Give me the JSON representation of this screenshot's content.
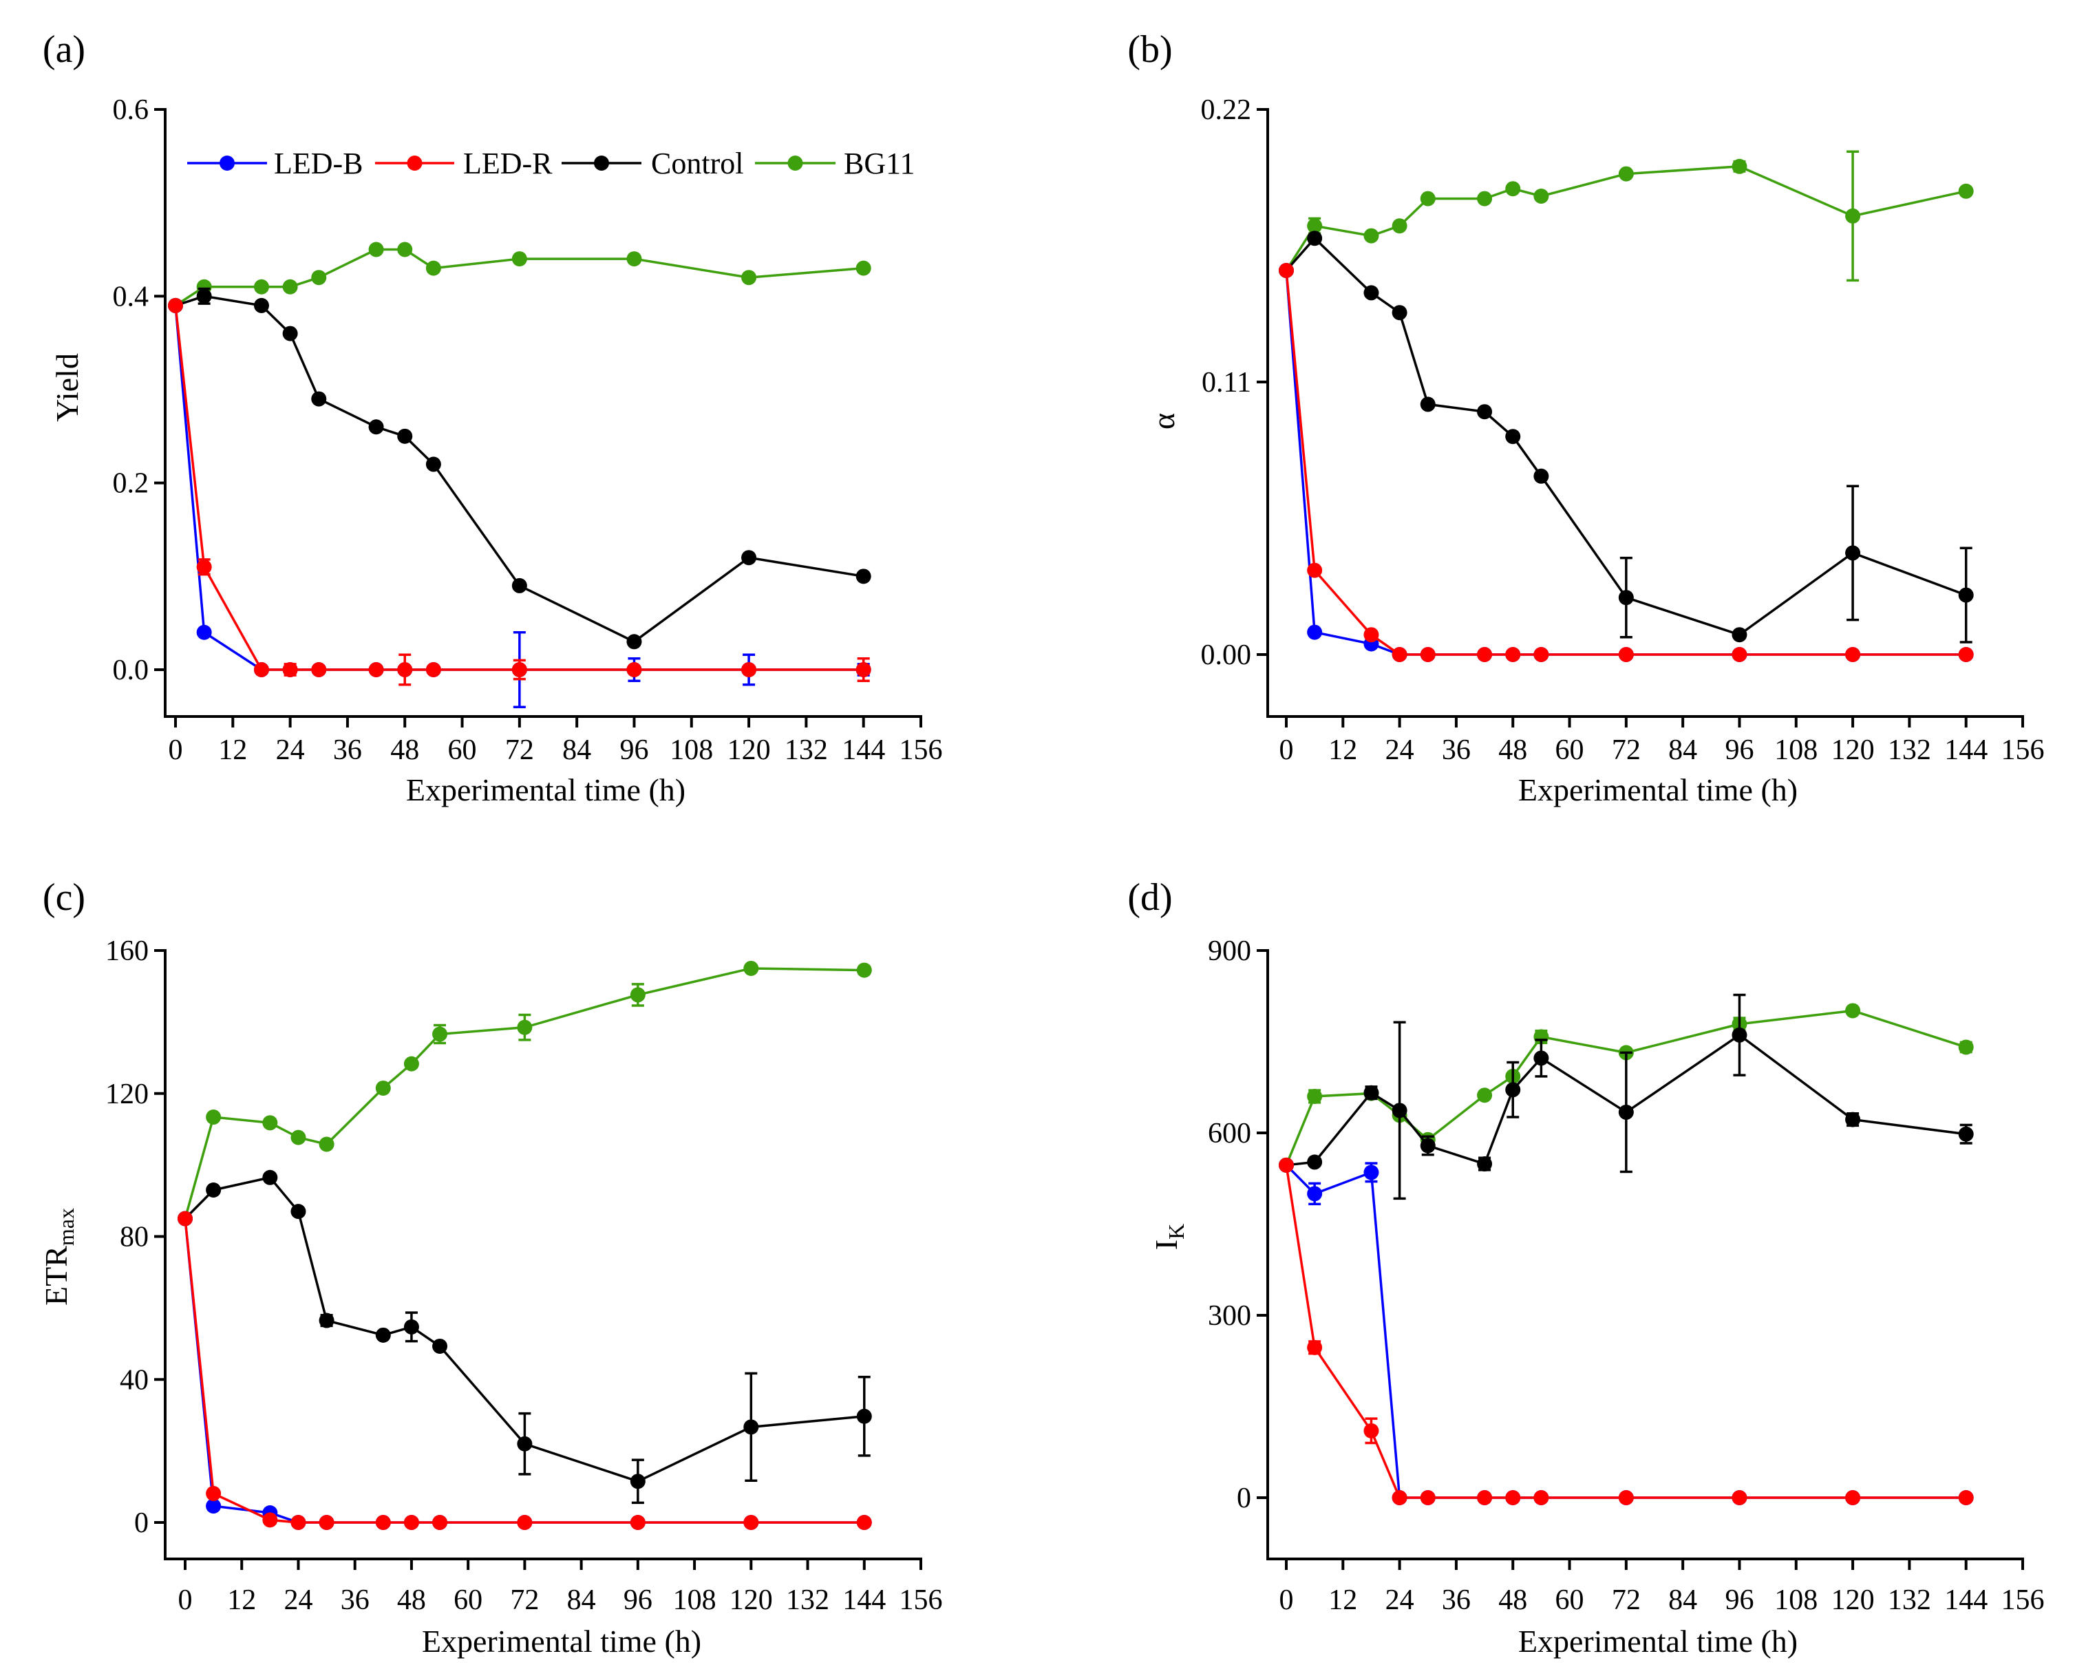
{
  "chart_data": [
    {
      "type": "line",
      "panel_label": "(a)",
      "xlabel": "Experimental time (h)",
      "ylabel": "Yield",
      "ylabel_sub": "",
      "xlim": [
        0,
        156
      ],
      "ylim": [
        -0.055,
        0.6
      ],
      "xticks": [
        "0",
        "12",
        "24",
        "36",
        "48",
        "60",
        "72",
        "84",
        "96",
        "108",
        "120",
        "132",
        "144",
        "156"
      ],
      "yticks": [
        "0.0",
        "0.2",
        "0.4",
        "0.6"
      ],
      "ytick_values": [
        0,
        0.2,
        0.4,
        0.6
      ],
      "legend": {
        "position": "top"
      },
      "x": [
        0,
        6,
        18,
        24,
        30,
        42,
        48,
        54,
        72,
        96,
        120,
        144
      ],
      "series": [
        {
          "name": "LED-B",
          "color": "#0000ff",
          "values": [
            0.39,
            0.04,
            0,
            0,
            0,
            0,
            0,
            0,
            0,
            0,
            0,
            0
          ],
          "errors": [
            0,
            0.003,
            0,
            0,
            0,
            0,
            0,
            0,
            0.04,
            0.012,
            0.016,
            0.006
          ]
        },
        {
          "name": "LED-R",
          "color": "#ff0000",
          "values": [
            0.39,
            0.11,
            0,
            0,
            0,
            0,
            0,
            0,
            0,
            0,
            0,
            0
          ],
          "errors": [
            0,
            0.008,
            0,
            0.006,
            0,
            0,
            0.016,
            0,
            0.01,
            0,
            0,
            0.012
          ]
        },
        {
          "name": "Control",
          "color": "#000000",
          "values": [
            0.39,
            0.4,
            0.39,
            0.36,
            0.29,
            0.26,
            0.25,
            0.22,
            0.09,
            0.03,
            0.12,
            0.1
          ],
          "errors": [
            0,
            0.008,
            0,
            0,
            0,
            0,
            0,
            0,
            0,
            0,
            0,
            0
          ]
        },
        {
          "name": "BG11",
          "color": "#3fa00e",
          "values": [
            0.39,
            0.41,
            0.41,
            0.41,
            0.42,
            0.45,
            0.45,
            0.43,
            0.44,
            0.44,
            0.42,
            0.43
          ],
          "errors": [
            0,
            0,
            0,
            0,
            0,
            0,
            0,
            0,
            0,
            0,
            0,
            0
          ]
        }
      ]
    },
    {
      "type": "line",
      "panel_label": "(b)",
      "xlabel": "Experimental time (h)",
      "ylabel": "α",
      "ylabel_sub": "",
      "xlim": [
        0,
        156
      ],
      "ylim": [
        -0.025,
        0.22
      ],
      "xticks": [
        "0",
        "12",
        "24",
        "36",
        "48",
        "60",
        "72",
        "84",
        "96",
        "108",
        "120",
        "132",
        "144",
        "156"
      ],
      "yticks": [
        "0.00",
        "0.11",
        "0.22"
      ],
      "ytick_values": [
        0,
        0.11,
        0.22
      ],
      "x": [
        0,
        6,
        18,
        24,
        30,
        42,
        48,
        54,
        72,
        96,
        120,
        144
      ],
      "series": [
        {
          "name": "LED-B",
          "color": "#0000ff",
          "values": [
            0.155,
            0.009,
            0.0043,
            0,
            0,
            0,
            0,
            0,
            0,
            0,
            0,
            0
          ],
          "errors": [
            0,
            0,
            0,
            0,
            0,
            0,
            0,
            0,
            0,
            0,
            0,
            0
          ]
        },
        {
          "name": "LED-R",
          "color": "#ff0000",
          "values": [
            0.155,
            0.034,
            0.008,
            0,
            0,
            0,
            0,
            0,
            0,
            0,
            0,
            0
          ],
          "errors": [
            0,
            0,
            0,
            0,
            0,
            0,
            0,
            0,
            0,
            0,
            0,
            0
          ]
        },
        {
          "name": "Control",
          "color": "#000000",
          "values": [
            0.155,
            0.168,
            0.146,
            0.138,
            0.101,
            0.098,
            0.088,
            0.072,
            0.023,
            0.008,
            0.041,
            0.024
          ],
          "errors": [
            0,
            0,
            0,
            0,
            0,
            0,
            0,
            0,
            0.016,
            0,
            0.027,
            0.019
          ]
        },
        {
          "name": "BG11",
          "color": "#3fa00e",
          "values": [
            0.155,
            0.173,
            0.169,
            0.173,
            0.184,
            0.184,
            0.188,
            0.185,
            0.194,
            0.197,
            0.177,
            0.187
          ],
          "errors": [
            0,
            0.003,
            0,
            0,
            0,
            0,
            0,
            0,
            0,
            0.002,
            0.026,
            0
          ]
        }
      ]
    },
    {
      "type": "line",
      "panel_label": "(c)",
      "xlabel": "Experimental time (h)",
      "ylabel": "ETR",
      "ylabel_sub": "max",
      "xlim": [
        0,
        156
      ],
      "ylim": [
        -10,
        160
      ],
      "xticks": [
        "0",
        "12",
        "24",
        "36",
        "48",
        "60",
        "72",
        "84",
        "96",
        "108",
        "120",
        "132",
        "144",
        "156"
      ],
      "yticks": [
        "0",
        "40",
        "80",
        "120",
        "160"
      ],
      "ytick_values": [
        0,
        40,
        80,
        120,
        160
      ],
      "x": [
        0,
        6,
        18,
        24,
        30,
        42,
        48,
        54,
        72,
        96,
        120,
        144
      ],
      "series": [
        {
          "name": "LED-B",
          "color": "#0000ff",
          "values": [
            85,
            4.6,
            2.7,
            0,
            0,
            0,
            0,
            0,
            0,
            0,
            0,
            0
          ],
          "errors": [
            0,
            0,
            0,
            0,
            0,
            0,
            0,
            0,
            0,
            0,
            0,
            0
          ]
        },
        {
          "name": "LED-R",
          "color": "#ff0000",
          "values": [
            85,
            8.1,
            0.7,
            0,
            0,
            0,
            0,
            0,
            0,
            0,
            0,
            0
          ],
          "errors": [
            0,
            0,
            0,
            0,
            0,
            0,
            0,
            0,
            0,
            0,
            0,
            0
          ]
        },
        {
          "name": "Control",
          "color": "#000000",
          "values": [
            85,
            93,
            96.5,
            87,
            56.5,
            52.4,
            54.7,
            49.3,
            22,
            11.5,
            26.7,
            29.7
          ],
          "errors": [
            0,
            0,
            0,
            0,
            1.5,
            0,
            4,
            0,
            8.5,
            6,
            15,
            11
          ]
        },
        {
          "name": "BG11",
          "color": "#3fa00e",
          "values": [
            85,
            113.4,
            111.8,
            107.7,
            105.8,
            121.5,
            128.3,
            136.6,
            138.5,
            147.6,
            155,
            154.5
          ],
          "errors": [
            0,
            0,
            1,
            0,
            0,
            0,
            0,
            2.5,
            3.5,
            3,
            0,
            1
          ]
        }
      ]
    },
    {
      "type": "line",
      "panel_label": "(d)",
      "xlabel": "Experimental time (h)",
      "ylabel": "I",
      "ylabel_sub": "K",
      "xlim": [
        0,
        156
      ],
      "ylim": [
        -100,
        900
      ],
      "xticks": [
        "0",
        "12",
        "24",
        "36",
        "48",
        "60",
        "72",
        "84",
        "96",
        "108",
        "120",
        "132",
        "144",
        "156"
      ],
      "yticks": [
        "0",
        "300",
        "600",
        "900"
      ],
      "ytick_values": [
        0,
        300,
        600,
        900
      ],
      "x": [
        0,
        6,
        18,
        24,
        30,
        42,
        48,
        54,
        72,
        96,
        120,
        144
      ],
      "series": [
        {
          "name": "LED-B",
          "color": "#0000ff",
          "values": [
            547,
            500,
            535,
            0,
            0,
            0,
            0,
            0,
            0,
            0,
            0,
            0
          ],
          "errors": [
            0,
            17,
            15,
            0,
            0,
            0,
            0,
            0,
            0,
            0,
            0,
            0
          ]
        },
        {
          "name": "LED-R",
          "color": "#ff0000",
          "values": [
            547,
            247,
            110,
            0,
            0,
            0,
            0,
            0,
            0,
            0,
            0,
            0
          ],
          "errors": [
            0,
            10,
            20,
            0,
            0,
            0,
            0,
            0,
            0,
            0,
            0,
            0
          ]
        },
        {
          "name": "Control",
          "color": "#000000",
          "values": [
            547,
            552,
            666,
            637,
            579,
            549,
            671,
            723,
            634,
            761,
            622,
            598
          ],
          "errors": [
            0,
            0,
            10,
            145,
            15,
            10,
            45,
            30,
            98,
            66,
            10,
            15
          ]
        },
        {
          "name": "BG11",
          "color": "#3fa00e",
          "values": [
            547,
            660,
            665,
            629,
            589,
            662,
            693,
            758,
            732,
            779,
            801,
            741
          ],
          "errors": [
            0,
            10,
            0,
            0,
            0,
            0,
            0,
            10,
            0,
            10,
            0,
            8
          ]
        }
      ]
    }
  ]
}
